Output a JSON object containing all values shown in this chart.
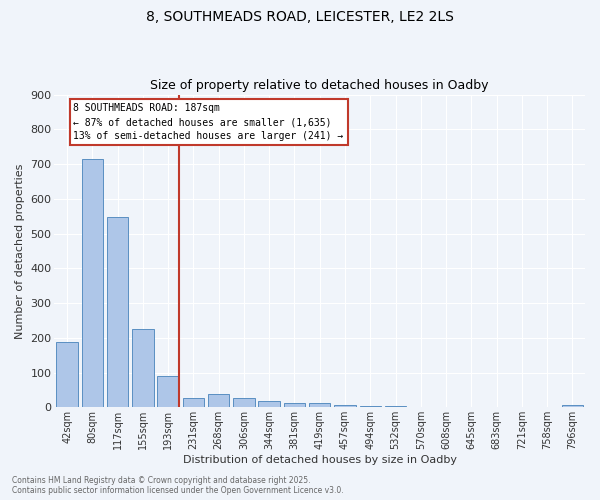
{
  "title1": "8, SOUTHMEADS ROAD, LEICESTER, LE2 2LS",
  "title2": "Size of property relative to detached houses in Oadby",
  "xlabel": "Distribution of detached houses by size in Oadby",
  "ylabel": "Number of detached properties",
  "bar_labels": [
    "42sqm",
    "80sqm",
    "117sqm",
    "155sqm",
    "193sqm",
    "231sqm",
    "268sqm",
    "306sqm",
    "344sqm",
    "381sqm",
    "419sqm",
    "457sqm",
    "494sqm",
    "532sqm",
    "570sqm",
    "608sqm",
    "645sqm",
    "683sqm",
    "721sqm",
    "758sqm",
    "796sqm"
  ],
  "bar_values": [
    188,
    714,
    547,
    226,
    91,
    27,
    38,
    26,
    17,
    12,
    12,
    8,
    5,
    4,
    2,
    2,
    1,
    1,
    0,
    0,
    8
  ],
  "bar_color": "#aec6e8",
  "bar_edge_color": "#5a8fc2",
  "vline_index": 4,
  "vline_color": "#c0392b",
  "annotation_title": "8 SOUTHMEADS ROAD: 187sqm",
  "annotation_line1": "← 87% of detached houses are smaller (1,635)",
  "annotation_line2": "13% of semi-detached houses are larger (241) →",
  "annotation_box_color": "#c0392b",
  "background_color": "#f0f4fa",
  "grid_color": "#ffffff",
  "footnote1": "Contains HM Land Registry data © Crown copyright and database right 2025.",
  "footnote2": "Contains public sector information licensed under the Open Government Licence v3.0.",
  "ylim": [
    0,
    900
  ],
  "yticks": [
    0,
    100,
    200,
    300,
    400,
    500,
    600,
    700,
    800,
    900
  ]
}
